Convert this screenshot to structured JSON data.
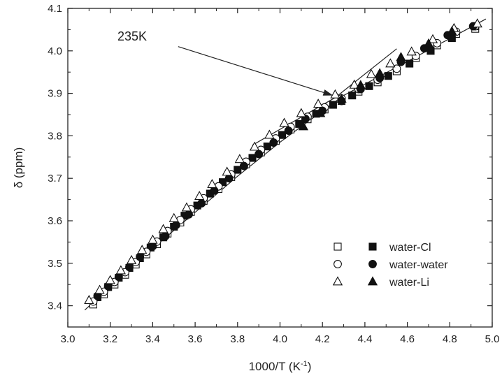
{
  "chart_data": {
    "type": "scatter",
    "xlabel": "1000/T (K",
    "xlabel_sup": "-1",
    "xlabel_end": ")",
    "ylabel": "δ (ppm)",
    "xlim": [
      3.0,
      5.0
    ],
    "ylim": [
      3.35,
      4.1
    ],
    "x_ticks": [
      "3.0",
      "3.2",
      "3.4",
      "3.6",
      "3.8",
      "4.0",
      "4.2",
      "4.4",
      "4.6",
      "4.8",
      "5.0"
    ],
    "y_ticks": [
      "3.4",
      "3.5",
      "3.6",
      "3.7",
      "3.8",
      "3.9",
      "4.0",
      "4.1"
    ],
    "grid": false,
    "legend_position": "bottom-right",
    "annotation": {
      "text": "235K",
      "arrow_from": [
        3.52,
        4.01
      ],
      "arrow_to": [
        4.25,
        3.895
      ]
    },
    "series": [
      {
        "name": "water-Cl",
        "marker": "square",
        "open": {
          "x": [
            3.12,
            3.17,
            3.22,
            3.27,
            3.32,
            3.37,
            3.42,
            3.47,
            3.53,
            3.58,
            3.64,
            3.71,
            3.77,
            3.84,
            3.91,
            3.98,
            4.05,
            4.13,
            4.21,
            4.29,
            4.37,
            4.46,
            4.55,
            4.64,
            4.74,
            4.83,
            4.92
          ],
          "y": [
            3.403,
            3.427,
            3.45,
            3.473,
            3.497,
            3.521,
            3.545,
            3.57,
            3.596,
            3.621,
            3.647,
            3.675,
            3.703,
            3.733,
            3.761,
            3.788,
            3.815,
            3.839,
            3.862,
            3.882,
            3.904,
            3.926,
            3.952,
            3.983,
            4.013,
            4.04,
            4.052
          ]
        },
        "filled": {
          "x": [
            3.14,
            3.19,
            3.24,
            3.29,
            3.34,
            3.39,
            3.45,
            3.5,
            3.55,
            3.61,
            3.67,
            3.73,
            3.8,
            3.87,
            3.94,
            4.01,
            4.09,
            4.17,
            4.25,
            4.34,
            4.42,
            4.51,
            4.61,
            4.71,
            4.81,
            4.92
          ],
          "y": [
            3.42,
            3.444,
            3.466,
            3.489,
            3.512,
            3.537,
            3.561,
            3.586,
            3.612,
            3.636,
            3.664,
            3.691,
            3.72,
            3.748,
            3.775,
            3.802,
            3.828,
            3.852,
            3.873,
            3.895,
            3.917,
            3.941,
            3.97,
            4.0,
            4.03,
            4.058
          ]
        }
      },
      {
        "name": "water-water",
        "marker": "circle",
        "open": {
          "x": [
            3.12,
            3.17,
            3.22,
            3.27,
            3.32,
            3.37,
            3.42,
            3.47,
            3.53,
            3.58,
            3.64,
            3.71,
            3.77,
            3.84,
            3.91,
            3.98,
            4.05,
            4.13,
            4.21,
            4.29,
            4.37,
            4.46,
            4.55,
            4.64,
            4.74,
            4.83,
            4.92
          ],
          "y": [
            3.41,
            3.433,
            3.456,
            3.479,
            3.503,
            3.527,
            3.551,
            3.576,
            3.602,
            3.627,
            3.653,
            3.681,
            3.709,
            3.739,
            3.767,
            3.794,
            3.821,
            3.845,
            3.867,
            3.888,
            3.91,
            3.932,
            3.958,
            3.988,
            4.018,
            4.045,
            4.058
          ]
        },
        "filled": {
          "x": [
            3.14,
            3.19,
            3.24,
            3.29,
            3.34,
            3.4,
            3.46,
            3.51,
            3.57,
            3.63,
            3.69,
            3.76,
            3.83,
            3.9,
            3.97,
            4.04,
            4.12,
            4.2,
            4.29,
            4.38,
            4.47,
            4.57,
            4.68,
            4.79,
            4.91
          ],
          "y": [
            3.423,
            3.446,
            3.468,
            3.491,
            3.515,
            3.54,
            3.564,
            3.59,
            3.615,
            3.641,
            3.671,
            3.7,
            3.729,
            3.757,
            3.784,
            3.812,
            3.84,
            3.859,
            3.882,
            3.91,
            3.936,
            3.974,
            4.006,
            4.037,
            4.058
          ]
        }
      },
      {
        "name": "water-Li",
        "marker": "triangle",
        "open": {
          "x": [
            3.1,
            3.15,
            3.2,
            3.25,
            3.3,
            3.35,
            3.4,
            3.45,
            3.5,
            3.56,
            3.62,
            3.68,
            3.75,
            3.81,
            3.88,
            3.95,
            4.02,
            4.1,
            4.18,
            4.26,
            4.35,
            4.43,
            4.52,
            4.62,
            4.72,
            4.82,
            4.93
          ],
          "y": [
            3.413,
            3.437,
            3.46,
            3.483,
            3.507,
            3.531,
            3.555,
            3.58,
            3.606,
            3.631,
            3.658,
            3.686,
            3.715,
            3.745,
            3.774,
            3.802,
            3.83,
            3.853,
            3.875,
            3.897,
            3.92,
            3.945,
            3.97,
            3.998,
            4.027,
            4.053,
            4.064
          ]
        },
        "filled": {
          "x": [
            4.11,
            4.19,
            4.29,
            4.38,
            4.47,
            4.57,
            4.7,
            4.81
          ],
          "y": [
            3.822,
            3.853,
            3.887,
            3.919,
            3.947,
            3.985,
            4.017,
            4.046
          ]
        }
      }
    ],
    "fit_lines": [
      {
        "points": [
          [
            3.08,
            3.39
          ],
          [
            3.4,
            3.535
          ],
          [
            3.8,
            3.705
          ],
          [
            4.0,
            3.785
          ],
          [
            4.3,
            3.895
          ],
          [
            4.6,
            3.975
          ],
          [
            4.97,
            4.075
          ]
        ]
      },
      {
        "points": [
          [
            3.87,
            3.778
          ],
          [
            4.26,
            3.89
          ],
          [
            4.55,
            4.005
          ]
        ]
      }
    ]
  }
}
